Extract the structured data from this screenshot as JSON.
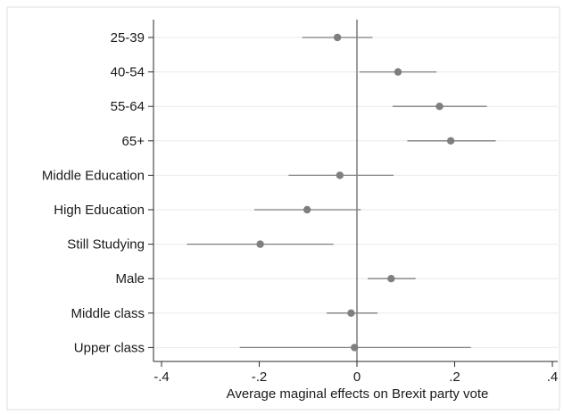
{
  "chart_data": {
    "type": "scatter",
    "subtype": "coefficient-plot",
    "title": "",
    "xlabel": "Average maginal effects on Brexit party vote",
    "ylabel": "",
    "xlim": [
      -0.4,
      0.4
    ],
    "xticks": [
      {
        "value": -0.4,
        "label": "-.4"
      },
      {
        "value": -0.2,
        "label": "-.2"
      },
      {
        "value": 0,
        "label": "0"
      },
      {
        "value": 0.2,
        "label": ".2"
      },
      {
        "value": 0.4,
        "label": ".4"
      }
    ],
    "categories": [
      "25-39",
      "40-54",
      "55-64",
      "65+",
      "Middle Education",
      "High Education",
      "Still Studying",
      "Male",
      "Middle class",
      "Upper class"
    ],
    "estimates": [
      -0.04,
      0.084,
      0.169,
      0.192,
      -0.035,
      -0.102,
      -0.198,
      0.07,
      -0.012,
      -0.005
    ],
    "ci_low": [
      -0.112,
      0.005,
      0.073,
      0.103,
      -0.14,
      -0.21,
      -0.348,
      0.022,
      -0.062,
      -0.24
    ],
    "ci_high": [
      0.032,
      0.163,
      0.266,
      0.284,
      0.075,
      0.008,
      -0.048,
      0.12,
      0.042,
      0.233
    ],
    "reference_line": 0,
    "grid": true,
    "colors": {
      "marker": "#7f7f7f",
      "ci": "#7f7f7f",
      "refline": "#666666",
      "grid": "#eaeaea",
      "axis": "#2a2a2a"
    }
  }
}
